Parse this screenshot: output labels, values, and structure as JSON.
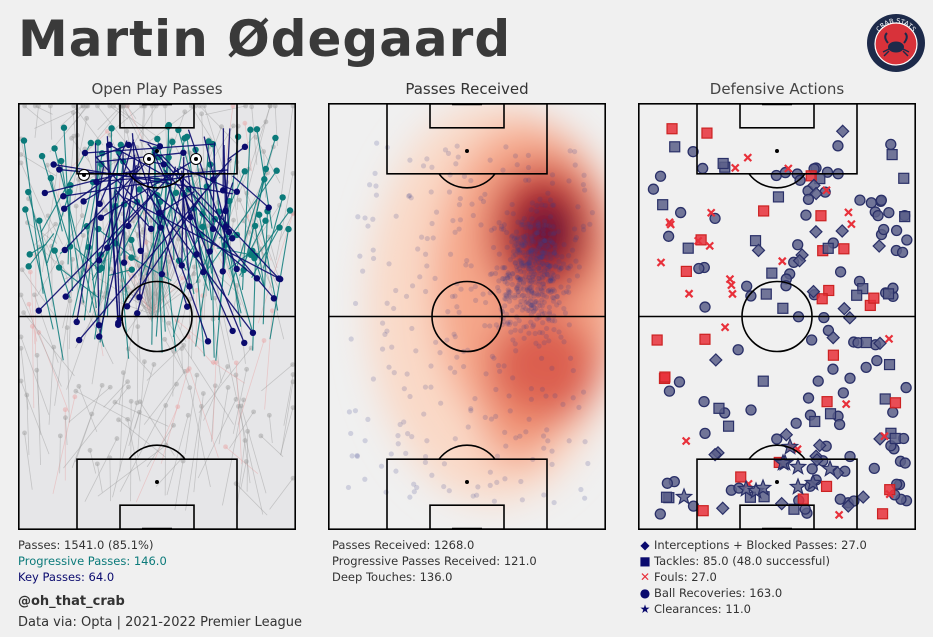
{
  "header": {
    "player_name": "Martin Ødegaard",
    "handle": "@oh_that_crab",
    "source": "Data via: Opta | 2021-2022 Premier League",
    "logo_text": "CRAB STATS"
  },
  "colors": {
    "background": "#f0f0f0",
    "progressive": "#0b7a7a",
    "key": "#0a0a6e",
    "defense_blue": "#1a1f5e",
    "foul_red": "#e8303a",
    "heat_dark": "#3a0a3a",
    "heat_mid": "#c42a2a",
    "heat_light": "#fbd5c0"
  },
  "panels": {
    "passes": {
      "title": "Open Play Passes",
      "stats": [
        {
          "text": "Passes: 1541.0 (85.1%)",
          "color": "#333333"
        },
        {
          "text": "Progressive Passes: 146.0",
          "color": "#0b7a7a"
        },
        {
          "text": "Key Passes: 64.0",
          "color": "#0a0a6e"
        }
      ]
    },
    "received": {
      "title": "Passes Received",
      "stats": [
        {
          "text": "Passes Received: 1268.0"
        },
        {
          "text": "Progressive Passes Received: 121.0"
        },
        {
          "text": "Deep Touches: 136.0"
        }
      ]
    },
    "defensive": {
      "title": "Defensive Actions",
      "legend": [
        {
          "icon": "diamond-icon",
          "symbol": "◆",
          "text": "Interceptions + Blocked Passes: 27.0",
          "color": "#0a0a6e"
        },
        {
          "icon": "square-icon",
          "symbol": "■",
          "text": "Tackles: 85.0 (48.0 successful)",
          "color": "#0a0a6e"
        },
        {
          "icon": "cross-icon",
          "symbol": "✕",
          "text": "Fouls: 27.0",
          "color": "#e8303a"
        },
        {
          "icon": "circle-icon",
          "symbol": "●",
          "text": "Ball Recoveries: 163.0",
          "color": "#0a0a6e"
        },
        {
          "icon": "star-icon",
          "symbol": "★",
          "text": "Clearances: 11.0",
          "color": "#0a0a6e"
        }
      ]
    }
  },
  "chart_data": [
    {
      "type": "scatter",
      "title": "Open Play Passes",
      "series": [
        {
          "name": "Passes",
          "count": 1541,
          "completion_pct": 85.1
        },
        {
          "name": "Progressive Passes",
          "count": 146
        },
        {
          "name": "Key Passes",
          "count": 64
        }
      ]
    },
    {
      "type": "heatmap",
      "title": "Passes Received",
      "series": [
        {
          "name": "Passes Received",
          "count": 1268
        },
        {
          "name": "Progressive Passes Received",
          "count": 121
        },
        {
          "name": "Deep Touches",
          "count": 136
        }
      ]
    },
    {
      "type": "scatter",
      "title": "Defensive Actions",
      "series": [
        {
          "name": "Interceptions + Blocked Passes",
          "count": 27
        },
        {
          "name": "Tackles",
          "count": 85,
          "successful": 48
        },
        {
          "name": "Fouls",
          "count": 27
        },
        {
          "name": "Ball Recoveries",
          "count": 163
        },
        {
          "name": "Clearances",
          "count": 11
        }
      ]
    }
  ]
}
